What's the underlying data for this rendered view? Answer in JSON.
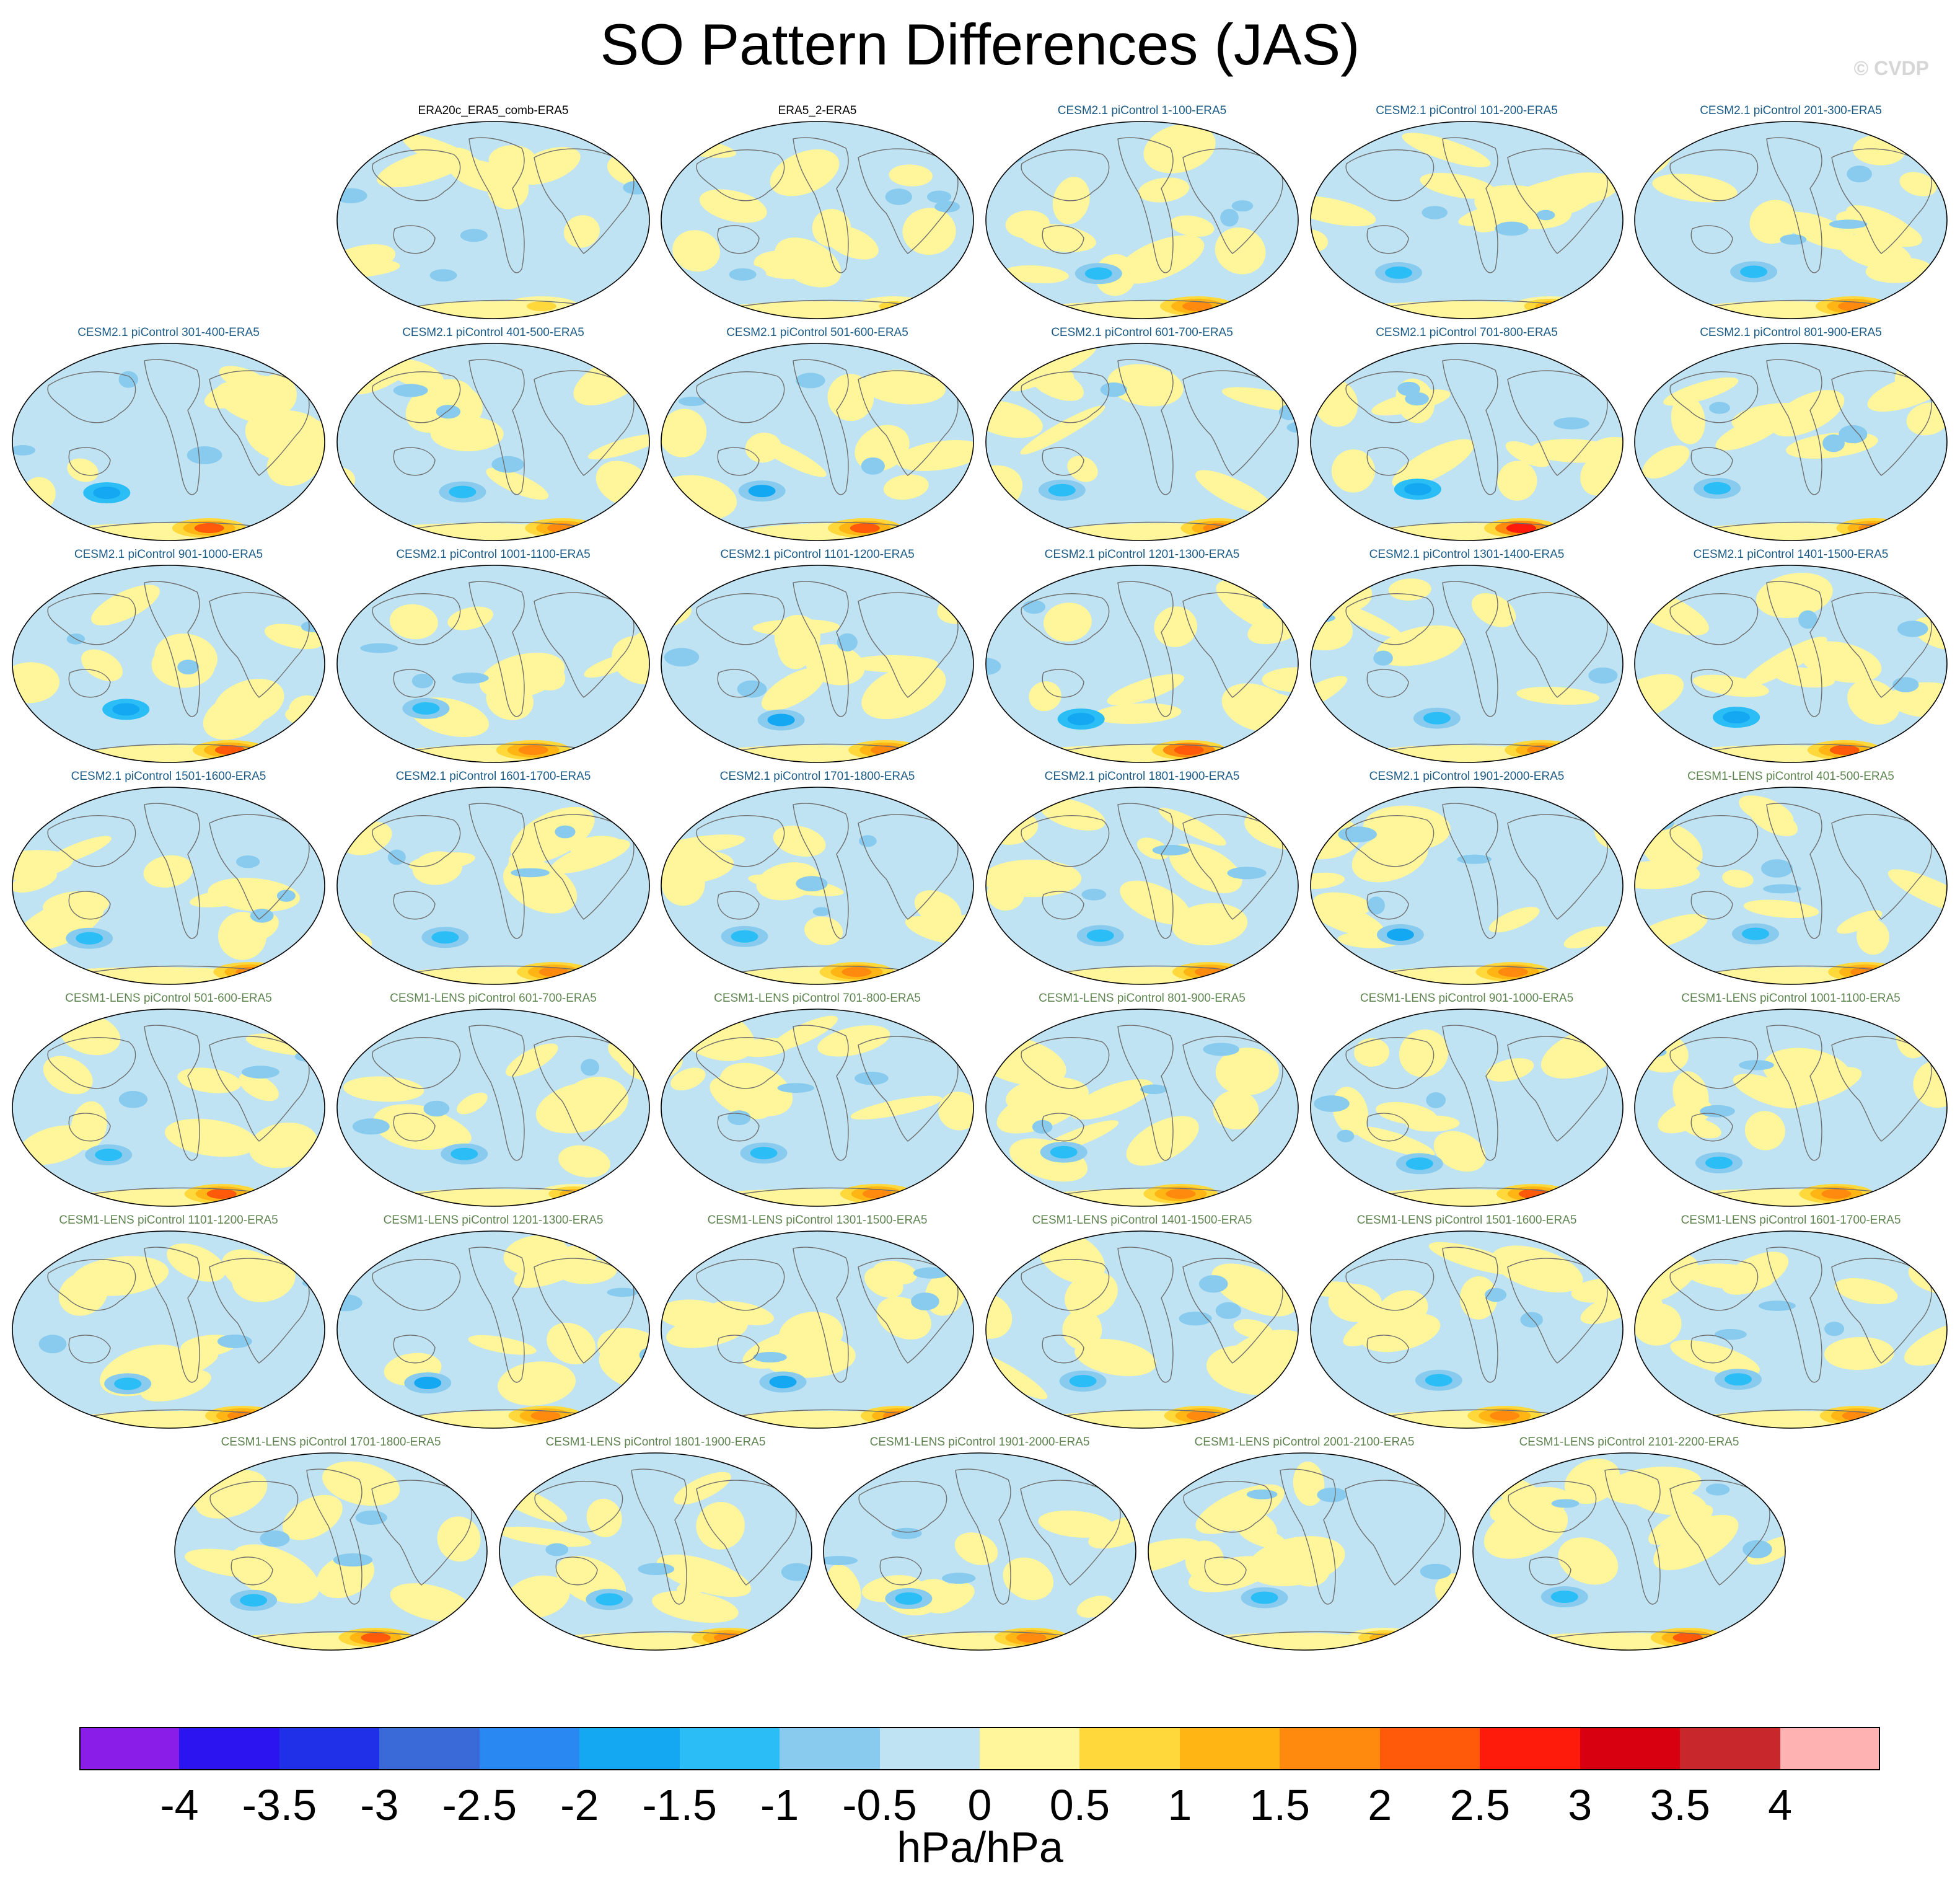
{
  "title": "SO Pattern Differences (JAS)",
  "copyright": "© CVDP",
  "colorbar": {
    "units": "hPa/hPa",
    "colors": [
      "#8a1ee8",
      "#2b14f0",
      "#2030e8",
      "#3a6ad8",
      "#2a88f2",
      "#15a8f2",
      "#2bbef6",
      "#88cbee",
      "#bfe3f2",
      "#fff59a",
      "#ffd83c",
      "#ffb514",
      "#ff8a0e",
      "#ff5a0a",
      "#ff1b0b",
      "#d80010",
      "#c8282c",
      "#ffb2b2"
    ],
    "tick_labels": [
      "-4",
      "-3.5",
      "-3",
      "-2.5",
      "-2",
      "-1.5",
      "-1",
      "-0.5",
      "0",
      "0.5",
      "1",
      "1.5",
      "2",
      "2.5",
      "3",
      "3.5",
      "4"
    ]
  },
  "chart_data": {
    "type": "heatmap",
    "title": "SO Pattern Differences (JAS)",
    "units": "hPa/hPa",
    "levels": [
      -4,
      -3.5,
      -3,
      -2.5,
      -2,
      -1.5,
      -1,
      -0.5,
      0,
      0.5,
      1,
      1.5,
      2,
      2.5,
      3,
      3.5,
      4
    ],
    "panels": [
      {
        "title": "ERA20c_ERA5_comb-ERA5",
        "group": "obs",
        "minv": -0.8,
        "maxv": 0.7
      },
      {
        "title": "ERA5_2-ERA5",
        "group": "obs",
        "minv": -0.7,
        "maxv": 0.6
      },
      {
        "title": "CESM2.1 piControl 1-100-ERA5",
        "group": "cesm2",
        "minv": -1.2,
        "maxv": 1.6
      },
      {
        "title": "CESM2.1 piControl 101-200-ERA5",
        "group": "cesm2",
        "minv": -1.2,
        "maxv": 1.4
      },
      {
        "title": "CESM2.1 piControl 201-300-ERA5",
        "group": "cesm2",
        "minv": -1.2,
        "maxv": 1.6
      },
      {
        "title": "CESM2.1 piControl 301-400-ERA5",
        "group": "cesm2",
        "minv": -1.8,
        "maxv": 2.0
      },
      {
        "title": "CESM2.1 piControl 401-500-ERA5",
        "group": "cesm2",
        "minv": -1.3,
        "maxv": 1.8
      },
      {
        "title": "CESM2.1 piControl 501-600-ERA5",
        "group": "cesm2",
        "minv": -1.6,
        "maxv": 2.0
      },
      {
        "title": "CESM2.1 piControl 601-700-ERA5",
        "group": "cesm2",
        "minv": -1.4,
        "maxv": 1.6
      },
      {
        "title": "CESM2.1 piControl 701-800-ERA5",
        "group": "cesm2",
        "minv": -2.0,
        "maxv": 2.5
      },
      {
        "title": "CESM2.1 piControl 801-900-ERA5",
        "group": "cesm2",
        "minv": -1.3,
        "maxv": 1.6
      },
      {
        "title": "CESM2.1 piControl 901-1000-ERA5",
        "group": "cesm2",
        "minv": -1.8,
        "maxv": 2.0
      },
      {
        "title": "CESM2.1 piControl 1001-1100-ERA5",
        "group": "cesm2",
        "minv": -1.2,
        "maxv": 1.8
      },
      {
        "title": "CESM2.1 piControl 1101-1200-ERA5",
        "group": "cesm2",
        "minv": -1.6,
        "maxv": 1.8
      },
      {
        "title": "CESM2.1 piControl 1201-1300-ERA5",
        "group": "cesm2",
        "minv": -1.8,
        "maxv": 2.2
      },
      {
        "title": "CESM2.1 piControl 1301-1400-ERA5",
        "group": "cesm2",
        "minv": -1.3,
        "maxv": 1.8
      },
      {
        "title": "CESM2.1 piControl 1401-1500-ERA5",
        "group": "cesm2",
        "minv": -1.8,
        "maxv": 2.0
      },
      {
        "title": "CESM2.1 piControl 1501-1600-ERA5",
        "group": "cesm2",
        "minv": -1.4,
        "maxv": 1.8
      },
      {
        "title": "CESM2.1 piControl 1601-1700-ERA5",
        "group": "cesm2",
        "minv": -1.3,
        "maxv": 1.6
      },
      {
        "title": "CESM2.1 piControl 1701-1800-ERA5",
        "group": "cesm2",
        "minv": -1.3,
        "maxv": 1.5
      },
      {
        "title": "CESM2.1 piControl 1801-1900-ERA5",
        "group": "cesm2",
        "minv": -1.3,
        "maxv": 1.8
      },
      {
        "title": "CESM2.1 piControl 1901-2000-ERA5",
        "group": "cesm2",
        "minv": -1.6,
        "maxv": 1.8
      },
      {
        "title": "CESM1-LENS piControl 401-500-ERA5",
        "group": "cesm1",
        "minv": -1.2,
        "maxv": 1.8
      },
      {
        "title": "CESM1-LENS piControl 501-600-ERA5",
        "group": "cesm1",
        "minv": -1.2,
        "maxv": 2.0
      },
      {
        "title": "CESM1-LENS piControl 601-700-ERA5",
        "group": "cesm1",
        "minv": -1.3,
        "maxv": 1.0
      },
      {
        "title": "CESM1-LENS piControl 701-800-ERA5",
        "group": "cesm1",
        "minv": -1.3,
        "maxv": 1.6
      },
      {
        "title": "CESM1-LENS piControl 801-900-ERA5",
        "group": "cesm1",
        "minv": -1.2,
        "maxv": 1.6
      },
      {
        "title": "CESM1-LENS piControl 901-1000-ERA5",
        "group": "cesm1",
        "minv": -1.3,
        "maxv": 2.0
      },
      {
        "title": "CESM1-LENS piControl 1001-1100-ERA5",
        "group": "cesm1",
        "minv": -1.2,
        "maxv": 1.6
      },
      {
        "title": "CESM1-LENS piControl 1101-1200-ERA5",
        "group": "cesm1",
        "minv": -1.2,
        "maxv": 1.8
      },
      {
        "title": "CESM1-LENS piControl 1201-1300-ERA5",
        "group": "cesm1",
        "minv": -1.6,
        "maxv": 1.8
      },
      {
        "title": "CESM1-LENS piControl 1301-1500-ERA5",
        "group": "cesm1",
        "minv": -1.6,
        "maxv": 1.8
      },
      {
        "title": "CESM1-LENS piControl 1401-1500-ERA5",
        "group": "cesm1",
        "minv": -1.2,
        "maxv": 1.8
      },
      {
        "title": "CESM1-LENS piControl 1501-1600-ERA5",
        "group": "cesm1",
        "minv": -1.2,
        "maxv": 1.5
      },
      {
        "title": "CESM1-LENS piControl 1601-1700-ERA5",
        "group": "cesm1",
        "minv": -1.2,
        "maxv": 1.6
      },
      {
        "title": "CESM1-LENS piControl 1701-1800-ERA5",
        "group": "cesm1",
        "minv": -1.2,
        "maxv": 2.0
      },
      {
        "title": "CESM1-LENS piControl 1801-1900-ERA5",
        "group": "cesm1",
        "minv": -1.3,
        "maxv": 1.6
      },
      {
        "title": "CESM1-LENS piControl 1901-2000-ERA5",
        "group": "cesm1",
        "minv": -1.2,
        "maxv": 1.6
      },
      {
        "title": "CESM1-LENS piControl 2001-2100-ERA5",
        "group": "cesm1",
        "minv": -1.2,
        "maxv": 1.2
      },
      {
        "title": "CESM1-LENS piControl 2101-2200-ERA5",
        "group": "cesm1",
        "minv": -1.2,
        "maxv": 2.0
      }
    ]
  },
  "group_colors": {
    "obs": "#000000",
    "cesm2": "#1a5a86",
    "cesm1": "#5e8450"
  }
}
